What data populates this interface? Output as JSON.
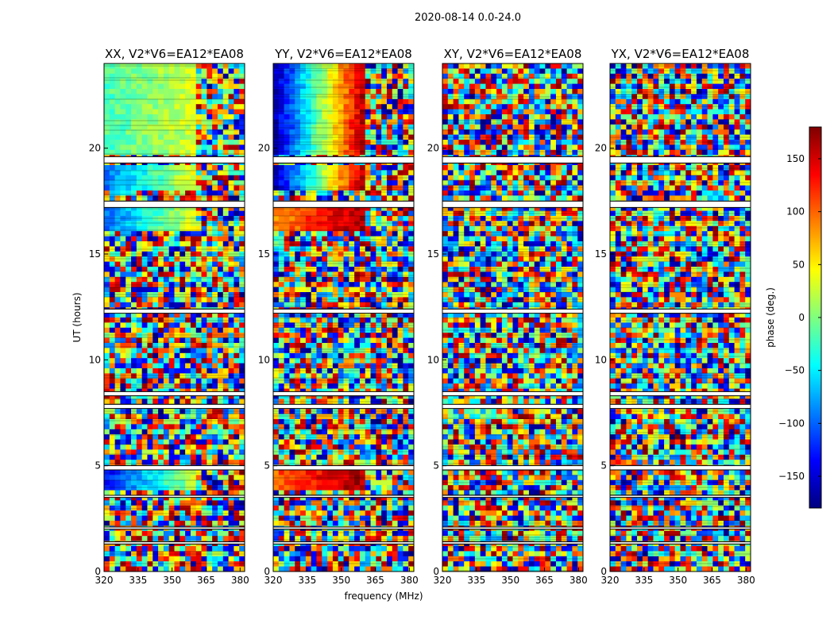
{
  "chart_data": {
    "type": "heatmap",
    "suptitle": "2020-08-14 0.0-24.0",
    "xlabel": "frequency (MHz)",
    "ylabel": "UT (hours)",
    "xlim": [
      320,
      382
    ],
    "ylim": [
      0,
      24
    ],
    "xticks": [
      "320",
      "335",
      "350",
      "365",
      "380"
    ],
    "xtick_values": [
      320,
      335,
      350,
      365,
      380
    ],
    "yticks": [
      "0",
      "5",
      "10",
      "15",
      "20"
    ],
    "ytick_values": [
      0,
      5,
      10,
      15,
      20
    ],
    "panels": [
      {
        "title": "XX, V2*V6=EA12*EA08",
        "coherent_blocks": [
          [
            19.6,
            24.0,
            -20,
            30
          ],
          [
            17.9,
            19.3,
            -100,
            40
          ],
          [
            16.1,
            17.2,
            -100,
            40
          ],
          [
            3.8,
            4.8,
            -130,
            20
          ]
        ]
      },
      {
        "title": "YY, V2*V6=EA12*EA08",
        "coherent_blocks": [
          [
            19.6,
            24.0,
            -170,
            170
          ],
          [
            17.9,
            19.3,
            -170,
            170
          ],
          [
            16.1,
            17.2,
            80,
            170
          ],
          [
            3.8,
            4.8,
            100,
            170
          ]
        ]
      },
      {
        "title": "XY, V2*V6=EA12*EA08",
        "coherent_blocks": []
      },
      {
        "title": "YX, V2*V6=EA12*EA08",
        "coherent_blocks": []
      }
    ],
    "flagged_hours": [
      [
        19.3,
        19.6
      ],
      [
        17.2,
        17.5
      ],
      [
        12.2,
        12.4
      ],
      [
        8.3,
        8.5
      ],
      [
        7.7,
        7.9
      ],
      [
        4.8,
        5.0
      ],
      [
        3.5,
        3.6
      ],
      [
        2.0,
        2.1
      ],
      [
        1.3,
        1.4
      ]
    ],
    "colorbar": {
      "label": "phase (deg.)",
      "range": [
        -180,
        180
      ],
      "ticks": [
        "150",
        "100",
        "50",
        "0",
        "−50",
        "−100",
        "−150"
      ],
      "tick_values": [
        150,
        100,
        50,
        0,
        -50,
        -100,
        -150
      ],
      "colormap": "jet",
      "colors": [
        "#00007f",
        "#0000ff",
        "#007fff",
        "#00ffff",
        "#7fff7f",
        "#ffff00",
        "#ff7f00",
        "#ff0000",
        "#7f0000"
      ]
    }
  }
}
